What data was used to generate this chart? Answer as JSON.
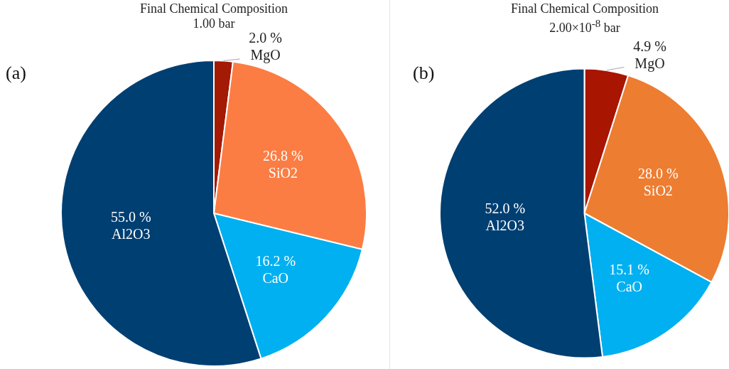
{
  "chart_data": [
    {
      "type": "pie",
      "title": "Final Chemical Composition",
      "subtitle": "1.00 bar",
      "annotations": [
        "(a)"
      ],
      "categories": [
        "MgO",
        "SiO2",
        "CaO",
        "Al2O3"
      ],
      "values": [
        2.0,
        26.8,
        16.2,
        55.0
      ],
      "value_labels": [
        "2.0 %",
        "26.8 %",
        "16.2 %",
        "55.0 %"
      ],
      "colors": [
        "#a31a05",
        "#fb7d43",
        "#00b0f0",
        "#003f72"
      ],
      "legend": false
    },
    {
      "type": "pie",
      "title": "Final Chemical Composition",
      "subtitle": "2.00×10$^{-8}$  bar",
      "annotations": [
        "(b)"
      ],
      "categories": [
        "MgO",
        "SiO2",
        "CaO",
        "Al2O3"
      ],
      "values": [
        4.9,
        28.0,
        15.1,
        52.0
      ],
      "value_labels": [
        "4.9 %",
        "28.0 %",
        "15.1 %",
        "52.0 %"
      ],
      "colors": [
        "#a81500",
        "#ed7d31",
        "#00b0f0",
        "#003f72"
      ],
      "legend": false
    }
  ]
}
